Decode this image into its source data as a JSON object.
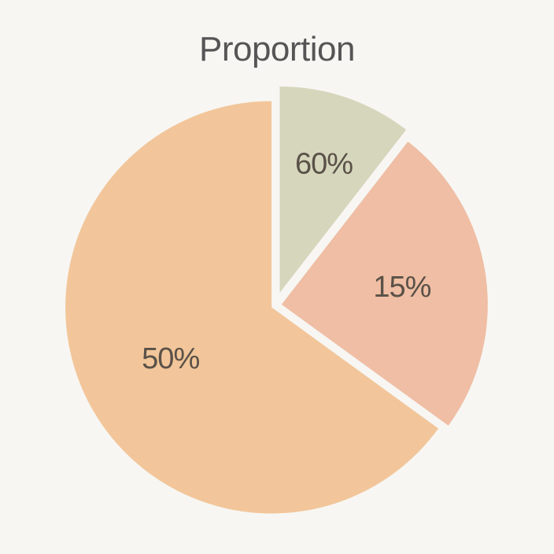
{
  "chart_data": {
    "type": "pie",
    "title": "Proportion",
    "slices": [
      {
        "label": "60%",
        "value": 10.5,
        "color": "#d6d6bc"
      },
      {
        "label": "15%",
        "value": 24.5,
        "color": "#efbea4"
      },
      {
        "label": "50%",
        "value": 65.0,
        "color": "#f2c69a"
      }
    ]
  }
}
